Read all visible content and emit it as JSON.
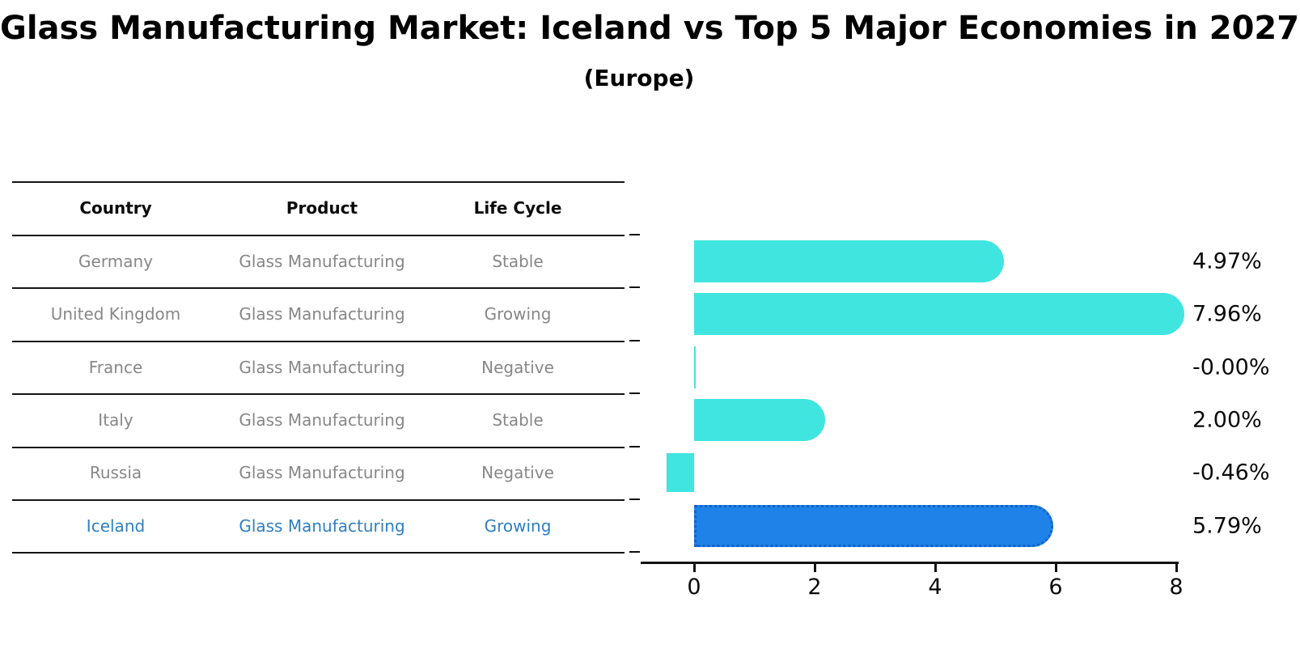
{
  "title": "Glass Manufacturing Market: Iceland vs Top 5 Major Economies in 2027",
  "subtitle": "(Europe)",
  "table": {
    "columns": [
      "Country",
      "Product",
      "Life Cycle"
    ],
    "rows": [
      {
        "country": "Germany",
        "product": "Glass Manufacturing",
        "life_cycle": "Stable",
        "highlight": false
      },
      {
        "country": "United Kingdom",
        "product": "Glass Manufacturing",
        "life_cycle": "Growing",
        "highlight": false
      },
      {
        "country": "France",
        "product": "Glass Manufacturing",
        "life_cycle": "Negative",
        "highlight": false
      },
      {
        "country": "Italy",
        "product": "Glass Manufacturing",
        "life_cycle": "Stable",
        "highlight": false
      },
      {
        "country": "Russia",
        "product": "Glass Manufacturing",
        "life_cycle": "Negative",
        "highlight": false
      },
      {
        "country": "Iceland",
        "product": "Glass Manufacturing",
        "life_cycle": "Growing",
        "highlight": true
      }
    ]
  },
  "chart_data": {
    "type": "bar",
    "orientation": "horizontal",
    "categories": [
      "Germany",
      "United Kingdom",
      "France",
      "Italy",
      "Russia",
      "Iceland"
    ],
    "values": [
      4.97,
      7.96,
      -0.0,
      2.0,
      -0.46,
      5.79
    ],
    "value_labels": [
      "4.97%",
      "7.96%",
      "-0.00%",
      "2.00%",
      "-0.46%",
      "5.79%"
    ],
    "highlight_index": 5,
    "x_ticks": [
      0,
      2,
      4,
      6,
      8
    ],
    "xlim": [
      -0.9,
      8.05
    ],
    "grid": false,
    "legend": "none"
  },
  "colors": {
    "bar": "#40E5DF",
    "highlight_bar": "#1E82E8",
    "highlight_bar_border": "#1263C8",
    "row_text": "#878787",
    "highlight_text": "#2E7FC2",
    "axis": "#111111"
  }
}
